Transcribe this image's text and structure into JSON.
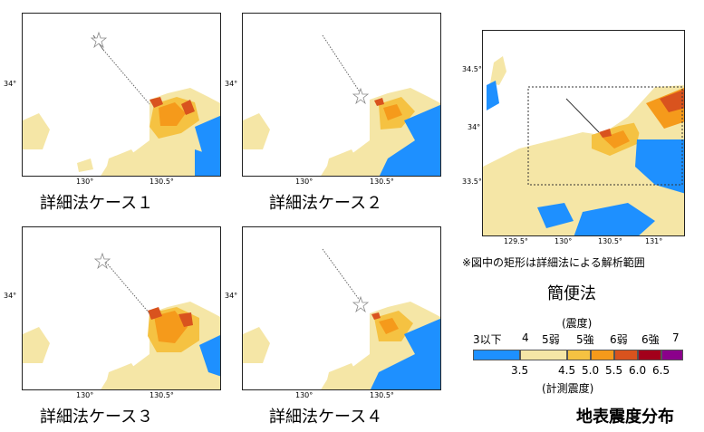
{
  "panels": [
    {
      "caption": "詳細法ケース１",
      "lat_tick": "34°",
      "lon_ticks": [
        "130°",
        "130.5°"
      ]
    },
    {
      "caption": "詳細法ケース２",
      "lat_tick": "34°",
      "lon_ticks": [
        "130°",
        "130.5°"
      ]
    },
    {
      "caption": "詳細法ケース３",
      "lat_tick": "34°",
      "lon_ticks": [
        "130°",
        "130.5°"
      ]
    },
    {
      "caption": "詳細法ケース４",
      "lat_tick": "34°",
      "lon_ticks": [
        "130°",
        "130.5°"
      ]
    }
  ],
  "simple_map": {
    "caption": "簡便法",
    "lat_ticks": [
      "34.5°",
      "34°",
      "33.5°"
    ],
    "lon_ticks": [
      "129.5°",
      "130°",
      "130.5°",
      "131°"
    ],
    "note": "※図中の矩形は詳細法による解析範囲"
  },
  "legend": {
    "title_top": "(震度)",
    "intensity_labels": [
      "3以下",
      "4",
      "5弱",
      "5強",
      "6弱",
      "6強",
      "7"
    ],
    "measured_values": [
      "3.5",
      "4.5",
      "5.0",
      "5.5",
      "6.0",
      "6.5"
    ],
    "title_bottom": "(計測震度)",
    "colors": [
      "#1e90ff",
      "#f5e6a6",
      "#f5c242",
      "#f59a1b",
      "#d9531e",
      "#a3001b",
      "#8b008b"
    ]
  },
  "figure_title": "地表震度分布"
}
